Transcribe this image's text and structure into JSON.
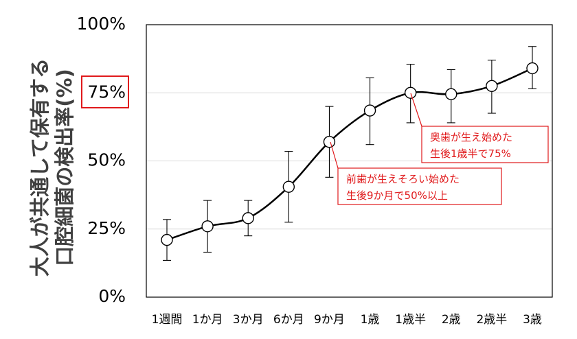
{
  "chart_data": {
    "type": "line",
    "title": "",
    "ylabel": [
      "大人が共通して保有する",
      "口腔細菌の検出率(%)"
    ],
    "xlabel": "",
    "ylim": [
      0,
      100
    ],
    "yticks": [
      "0%",
      "25%",
      "50%",
      "75%",
      "100%"
    ],
    "highlighted_ytick": "75%",
    "categories": [
      "1週間",
      "1か月",
      "3か月",
      "6か月",
      "9か月",
      "1歳",
      "1歳半",
      "2歳",
      "2歳半",
      "3歳"
    ],
    "series": [
      {
        "values": [
          21,
          26,
          29,
          40.5,
          57,
          68.5,
          75,
          74.5,
          77.5,
          84
        ],
        "error_low": [
          13.5,
          16.5,
          22.5,
          27.5,
          44,
          56,
          64,
          64,
          67.5,
          76.5
        ],
        "error_high": [
          28.5,
          35.5,
          35.5,
          53.5,
          70,
          80.5,
          85.5,
          83.5,
          87,
          92
        ]
      }
    ],
    "grid": true,
    "legend": "none",
    "annotations": [
      {
        "lines": [
          "前歯が生えそろい始めた",
          "生後9か月で50%以上"
        ],
        "points_to": "9か月"
      },
      {
        "lines": [
          "奥歯が生え始めた",
          "生後1歳半で75%"
        ],
        "points_to": "1歳半"
      }
    ],
    "colors": {
      "line": "#000000",
      "marker_fill": "#ffffff",
      "grid": "#d9d9d9",
      "annotation": "#e0191b",
      "ylabel": "#404040"
    }
  }
}
